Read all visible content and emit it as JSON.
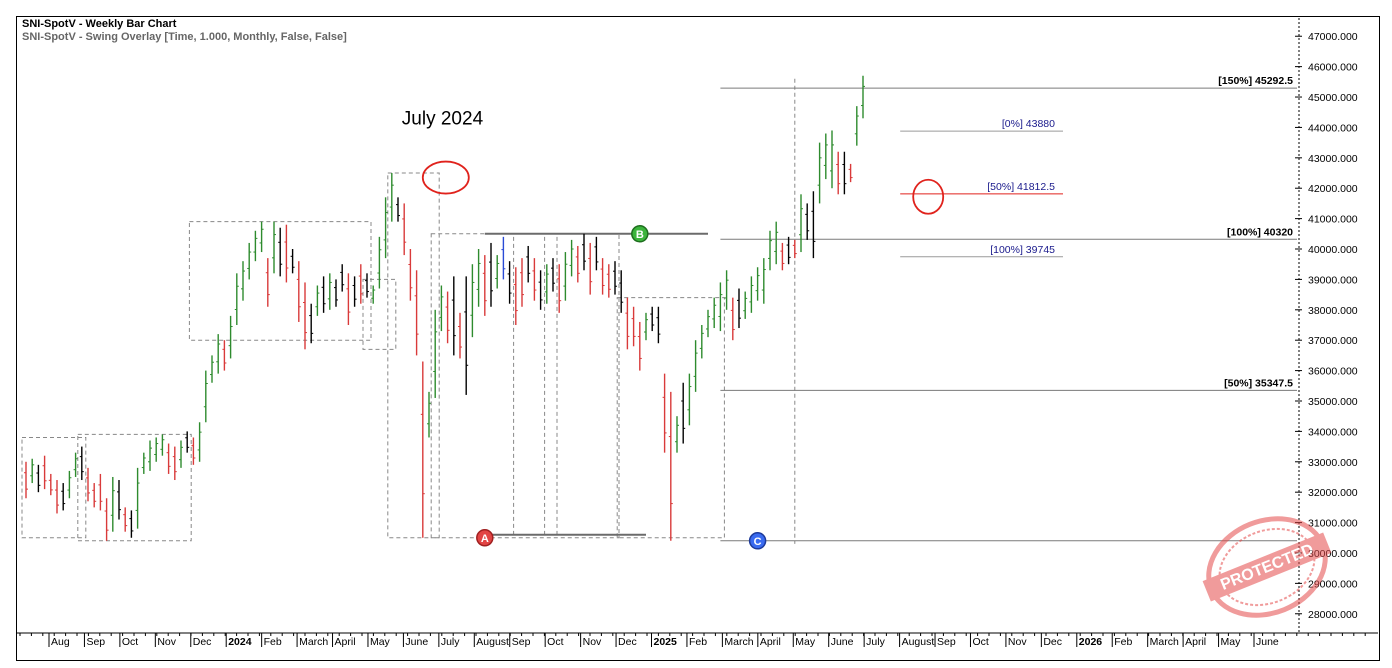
{
  "header": {
    "title": "SNI-SpotV - Weekly Bar Chart",
    "subtitle": "SNI-SpotV - Swing Overlay [Time, 1.000, Monthly, False, False]"
  },
  "annotations": {
    "event_label": "July 2024",
    "swing_A": "A",
    "swing_B": "B",
    "swing_C": "C",
    "stamp_text": "PROTECTED"
  },
  "colors": {
    "up_bar": "#2e8b2e",
    "down_bar": "#d93a3a",
    "neutral_bar": "#000000",
    "blue_bar": "#2a4bd6",
    "projection_label": "#1a1a8c",
    "highlight_circle": "#e0221c",
    "box": "#888888"
  },
  "chart_data": {
    "type": "bar",
    "title": "SNI-SpotV - Weekly Bar Chart",
    "ylim": [
      27400,
      47600
    ],
    "y_ticks": [
      28000,
      29000,
      30000,
      31000,
      32000,
      33000,
      34000,
      35000,
      36000,
      37000,
      38000,
      39000,
      40000,
      41000,
      42000,
      43000,
      44000,
      45000,
      46000,
      47000
    ],
    "y_tick_labels": [
      "28000.000",
      "29000.000",
      "30000.000",
      "31000.000",
      "32000.000",
      "33000.000",
      "34000.000",
      "35000.000",
      "36000.000",
      "37000.000",
      "38000.000",
      "39000.000",
      "40000.000",
      "41000.000",
      "42000.000",
      "43000.000",
      "44000.000",
      "45000.000",
      "46000.000",
      "47000.000"
    ],
    "x_labels": [
      {
        "text": "Aug",
        "bold": false
      },
      {
        "text": "Sep",
        "bold": false
      },
      {
        "text": "Oct",
        "bold": false
      },
      {
        "text": "Nov",
        "bold": false
      },
      {
        "text": "Dec",
        "bold": false
      },
      {
        "text": "2024",
        "bold": true
      },
      {
        "text": "Feb",
        "bold": false
      },
      {
        "text": "March",
        "bold": false
      },
      {
        "text": "April",
        "bold": false
      },
      {
        "text": "May",
        "bold": false
      },
      {
        "text": "June",
        "bold": false
      },
      {
        "text": "July",
        "bold": false
      },
      {
        "text": "August",
        "bold": false
      },
      {
        "text": "Sep",
        "bold": false
      },
      {
        "text": "Oct",
        "bold": false
      },
      {
        "text": "Nov",
        "bold": false
      },
      {
        "text": "Dec",
        "bold": false
      },
      {
        "text": "2025",
        "bold": true
      },
      {
        "text": "Feb",
        "bold": false
      },
      {
        "text": "March",
        "bold": false
      },
      {
        "text": "April",
        "bold": false
      },
      {
        "text": "May",
        "bold": false
      },
      {
        "text": "June",
        "bold": false
      },
      {
        "text": "July",
        "bold": false
      },
      {
        "text": "August",
        "bold": false
      },
      {
        "text": "Sep",
        "bold": false
      },
      {
        "text": "Oct",
        "bold": false
      },
      {
        "text": "Nov",
        "bold": false
      },
      {
        "text": "Dec",
        "bold": false
      },
      {
        "text": "2026",
        "bold": true
      },
      {
        "text": "Feb",
        "bold": false
      },
      {
        "text": "March",
        "bold": false
      },
      {
        "text": "April",
        "bold": false
      },
      {
        "text": "May",
        "bold": false
      },
      {
        "text": "June",
        "bold": false
      }
    ],
    "bars": [
      {
        "h": 33000,
        "l": 31800,
        "c": "d"
      },
      {
        "h": 33100,
        "l": 32300,
        "c": "u"
      },
      {
        "h": 32900,
        "l": 32000,
        "c": "n"
      },
      {
        "h": 33200,
        "l": 32100,
        "c": "d"
      },
      {
        "h": 32600,
        "l": 31900,
        "c": "d"
      },
      {
        "h": 32400,
        "l": 31300,
        "c": "d"
      },
      {
        "h": 32300,
        "l": 31400,
        "c": "n"
      },
      {
        "h": 32700,
        "l": 31800,
        "c": "u"
      },
      {
        "h": 33300,
        "l": 32500,
        "c": "u"
      },
      {
        "h": 33500,
        "l": 32400,
        "c": "n"
      },
      {
        "h": 32800,
        "l": 31700,
        "c": "d"
      },
      {
        "h": 32300,
        "l": 31500,
        "c": "d"
      },
      {
        "h": 32600,
        "l": 31400,
        "c": "d"
      },
      {
        "h": 31800,
        "l": 30400,
        "c": "d"
      },
      {
        "h": 32500,
        "l": 30700,
        "c": "u"
      },
      {
        "h": 32400,
        "l": 31100,
        "c": "n"
      },
      {
        "h": 31500,
        "l": 30700,
        "c": "d"
      },
      {
        "h": 31400,
        "l": 30500,
        "c": "n"
      },
      {
        "h": 32800,
        "l": 30800,
        "c": "u"
      },
      {
        "h": 33300,
        "l": 32600,
        "c": "u"
      },
      {
        "h": 33700,
        "l": 32700,
        "c": "u"
      },
      {
        "h": 33800,
        "l": 33000,
        "c": "u"
      },
      {
        "h": 33900,
        "l": 33200,
        "c": "u"
      },
      {
        "h": 33600,
        "l": 32600,
        "c": "d"
      },
      {
        "h": 33500,
        "l": 32400,
        "c": "d"
      },
      {
        "h": 33700,
        "l": 32800,
        "c": "u"
      },
      {
        "h": 34000,
        "l": 33300,
        "c": "n"
      },
      {
        "h": 33800,
        "l": 32900,
        "c": "d"
      },
      {
        "h": 34300,
        "l": 33000,
        "c": "u"
      },
      {
        "h": 36000,
        "l": 34300,
        "c": "u"
      },
      {
        "h": 36500,
        "l": 35600,
        "c": "u"
      },
      {
        "h": 37200,
        "l": 35900,
        "c": "u"
      },
      {
        "h": 37000,
        "l": 36000,
        "c": "d"
      },
      {
        "h": 37800,
        "l": 36400,
        "c": "u"
      },
      {
        "h": 39200,
        "l": 37500,
        "c": "u"
      },
      {
        "h": 39600,
        "l": 38300,
        "c": "u"
      },
      {
        "h": 40200,
        "l": 39000,
        "c": "u"
      },
      {
        "h": 40600,
        "l": 39600,
        "c": "u"
      },
      {
        "h": 40900,
        "l": 39900,
        "c": "u"
      },
      {
        "h": 39700,
        "l": 38100,
        "c": "d"
      },
      {
        "h": 40900,
        "l": 39200,
        "c": "u"
      },
      {
        "h": 40700,
        "l": 39100,
        "c": "n"
      },
      {
        "h": 40800,
        "l": 38900,
        "c": "d"
      },
      {
        "h": 40000,
        "l": 39200,
        "c": "n"
      },
      {
        "h": 39600,
        "l": 37600,
        "c": "d"
      },
      {
        "h": 38900,
        "l": 36700,
        "c": "d"
      },
      {
        "h": 38200,
        "l": 36900,
        "c": "n"
      },
      {
        "h": 38800,
        "l": 37800,
        "c": "u"
      },
      {
        "h": 39100,
        "l": 37900,
        "c": "n"
      },
      {
        "h": 39200,
        "l": 38000,
        "c": "u"
      },
      {
        "h": 39000,
        "l": 38100,
        "c": "n"
      },
      {
        "h": 39500,
        "l": 38600,
        "c": "n"
      },
      {
        "h": 39200,
        "l": 37500,
        "c": "d"
      },
      {
        "h": 39100,
        "l": 38100,
        "c": "n"
      },
      {
        "h": 39500,
        "l": 38200,
        "c": "d"
      },
      {
        "h": 39200,
        "l": 38400,
        "c": "n"
      },
      {
        "h": 38800,
        "l": 38200,
        "c": "u"
      },
      {
        "h": 40400,
        "l": 38700,
        "c": "u"
      },
      {
        "h": 41700,
        "l": 39700,
        "c": "u"
      },
      {
        "h": 42500,
        "l": 40900,
        "c": "u"
      },
      {
        "h": 41700,
        "l": 40900,
        "c": "n"
      },
      {
        "h": 41500,
        "l": 39800,
        "c": "d"
      },
      {
        "h": 40000,
        "l": 38300,
        "c": "d"
      },
      {
        "h": 39300,
        "l": 36500,
        "c": "d"
      },
      {
        "h": 36300,
        "l": 30500,
        "c": "d"
      },
      {
        "h": 35300,
        "l": 33800,
        "c": "u"
      },
      {
        "h": 38000,
        "l": 35100,
        "c": "u"
      },
      {
        "h": 38800,
        "l": 37300,
        "c": "u"
      },
      {
        "h": 38600,
        "l": 36900,
        "c": "d"
      },
      {
        "h": 39100,
        "l": 36500,
        "c": "n"
      },
      {
        "h": 37900,
        "l": 36400,
        "c": "d"
      },
      {
        "h": 39100,
        "l": 35200,
        "c": "n"
      },
      {
        "h": 39500,
        "l": 37100,
        "c": "u"
      },
      {
        "h": 40000,
        "l": 38100,
        "c": "u"
      },
      {
        "h": 39800,
        "l": 37800,
        "c": "d"
      },
      {
        "h": 40200,
        "l": 38100,
        "c": "n"
      },
      {
        "h": 39800,
        "l": 38700,
        "c": "u"
      },
      {
        "h": 40400,
        "l": 39000,
        "c": "b"
      },
      {
        "h": 39600,
        "l": 38200,
        "c": "n"
      },
      {
        "h": 39400,
        "l": 37500,
        "c": "d"
      },
      {
        "h": 39700,
        "l": 38100,
        "c": "d"
      },
      {
        "h": 40100,
        "l": 38900,
        "c": "n"
      },
      {
        "h": 39700,
        "l": 38300,
        "c": "d"
      },
      {
        "h": 39300,
        "l": 38000,
        "c": "n"
      },
      {
        "h": 39500,
        "l": 38200,
        "c": "u"
      },
      {
        "h": 39700,
        "l": 38600,
        "c": "n"
      },
      {
        "h": 39500,
        "l": 37900,
        "c": "d"
      },
      {
        "h": 39900,
        "l": 38300,
        "c": "u"
      },
      {
        "h": 40300,
        "l": 39100,
        "c": "u"
      },
      {
        "h": 40100,
        "l": 38900,
        "c": "d"
      },
      {
        "h": 40500,
        "l": 39300,
        "c": "n"
      },
      {
        "h": 40200,
        "l": 38500,
        "c": "d"
      },
      {
        "h": 40400,
        "l": 39300,
        "c": "n"
      },
      {
        "h": 39700,
        "l": 38500,
        "c": "d"
      },
      {
        "h": 39500,
        "l": 38400,
        "c": "d"
      },
      {
        "h": 39600,
        "l": 38500,
        "c": "n"
      },
      {
        "h": 39300,
        "l": 37900,
        "c": "n"
      },
      {
        "h": 38400,
        "l": 36700,
        "c": "d"
      },
      {
        "h": 38100,
        "l": 36800,
        "c": "d"
      },
      {
        "h": 37600,
        "l": 36000,
        "c": "d"
      },
      {
        "h": 37900,
        "l": 37000,
        "c": "u"
      },
      {
        "h": 38100,
        "l": 37300,
        "c": "n"
      },
      {
        "h": 38100,
        "l": 36900,
        "c": "n"
      },
      {
        "h": 35900,
        "l": 33300,
        "c": "d"
      },
      {
        "h": 35300,
        "l": 30400,
        "c": "d"
      },
      {
        "h": 34500,
        "l": 33300,
        "c": "u"
      },
      {
        "h": 35600,
        "l": 33600,
        "c": "n"
      },
      {
        "h": 35900,
        "l": 34200,
        "c": "u"
      },
      {
        "h": 37000,
        "l": 35300,
        "c": "u"
      },
      {
        "h": 37500,
        "l": 36400,
        "c": "u"
      },
      {
        "h": 38000,
        "l": 37100,
        "c": "u"
      },
      {
        "h": 38400,
        "l": 37400,
        "c": "u"
      },
      {
        "h": 38900,
        "l": 37300,
        "c": "u"
      },
      {
        "h": 39300,
        "l": 38000,
        "c": "u"
      },
      {
        "h": 38400,
        "l": 37000,
        "c": "d"
      },
      {
        "h": 38700,
        "l": 37400,
        "c": "n"
      },
      {
        "h": 38600,
        "l": 37700,
        "c": "u"
      },
      {
        "h": 39100,
        "l": 37900,
        "c": "u"
      },
      {
        "h": 39400,
        "l": 38300,
        "c": "u"
      },
      {
        "h": 39700,
        "l": 38200,
        "c": "u"
      },
      {
        "h": 40600,
        "l": 39300,
        "c": "u"
      },
      {
        "h": 40900,
        "l": 39500,
        "c": "u"
      },
      {
        "h": 40200,
        "l": 39300,
        "c": "d"
      },
      {
        "h": 40400,
        "l": 39500,
        "c": "n"
      },
      {
        "h": 40300,
        "l": 39700,
        "c": "d"
      },
      {
        "h": 41800,
        "l": 39900,
        "c": "u"
      },
      {
        "h": 41500,
        "l": 40300,
        "c": "n"
      },
      {
        "h": 41900,
        "l": 39700,
        "c": "n"
      },
      {
        "h": 43500,
        "l": 41500,
        "c": "u"
      },
      {
        "h": 43800,
        "l": 42300,
        "c": "u"
      },
      {
        "h": 43900,
        "l": 42000,
        "c": "u"
      },
      {
        "h": 43200,
        "l": 41800,
        "c": "d"
      },
      {
        "h": 43200,
        "l": 41800,
        "c": "n"
      },
      {
        "h": 42800,
        "l": 42200,
        "c": "d"
      },
      {
        "h": 44700,
        "l": 43400,
        "c": "u"
      },
      {
        "h": 45700,
        "l": 44300,
        "c": "u"
      }
    ],
    "levels": [
      {
        "label": "[150%] 45292.5",
        "value": 45292.5,
        "bold": true
      },
      {
        "label": "[100%] 40320",
        "value": 40320,
        "bold": true
      },
      {
        "label": "[50%] 35347.5",
        "value": 35347.5,
        "bold": true
      },
      {
        "label": "[0%] 43880",
        "value": 43880,
        "bold": false
      },
      {
        "label": "[50%] 41812.5",
        "value": 41812.5,
        "bold": false
      },
      {
        "label": "[100%] 39745",
        "value": 39745,
        "bold": false
      }
    ],
    "swing_points": [
      {
        "label": "A",
        "value": 30500
      },
      {
        "label": "B",
        "value": 40500
      },
      {
        "label": "C",
        "value": 30400
      }
    ]
  }
}
